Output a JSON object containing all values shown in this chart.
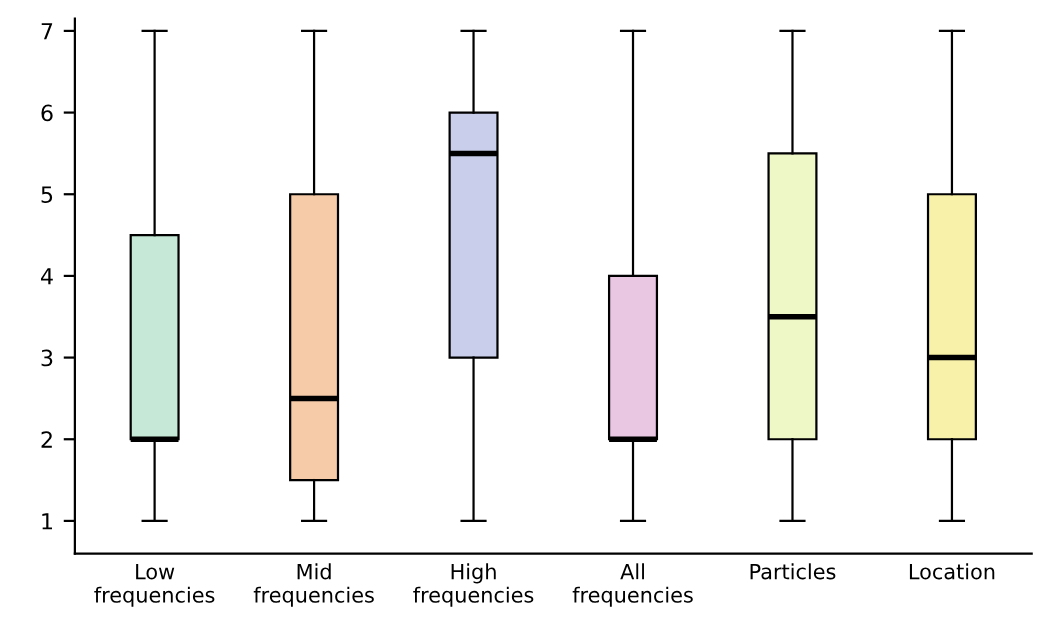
{
  "chart_data": {
    "type": "box",
    "categories": [
      "Low\nfrequencies",
      "Mid\nfrequencies",
      "High\nfrequencies",
      "All\nfrequencies",
      "Particles",
      "Location"
    ],
    "boxes": [
      {
        "low": 1,
        "q1": 2,
        "median": 2,
        "q3": 4.5,
        "high": 7
      },
      {
        "low": 1,
        "q1": 1.5,
        "median": 2.5,
        "q3": 5,
        "high": 7
      },
      {
        "low": 1,
        "q1": 3,
        "median": 5.5,
        "q3": 6,
        "high": 7
      },
      {
        "low": 1,
        "q1": 2,
        "median": 2,
        "q3": 4,
        "high": 7
      },
      {
        "low": 1,
        "q1": 2,
        "median": 3.5,
        "q3": 5.5,
        "high": 7
      },
      {
        "low": 1,
        "q1": 2,
        "median": 3,
        "q3": 5,
        "high": 7
      }
    ],
    "colors": [
      "#c6e8d6",
      "#f6cba8",
      "#c9cfea",
      "#e9c6e2",
      "#eef7c6",
      "#f8f1aa"
    ],
    "ylim": [
      0.6,
      7.15
    ],
    "yticks": [
      1,
      2,
      3,
      4,
      5,
      6,
      7
    ],
    "grid": false
  }
}
